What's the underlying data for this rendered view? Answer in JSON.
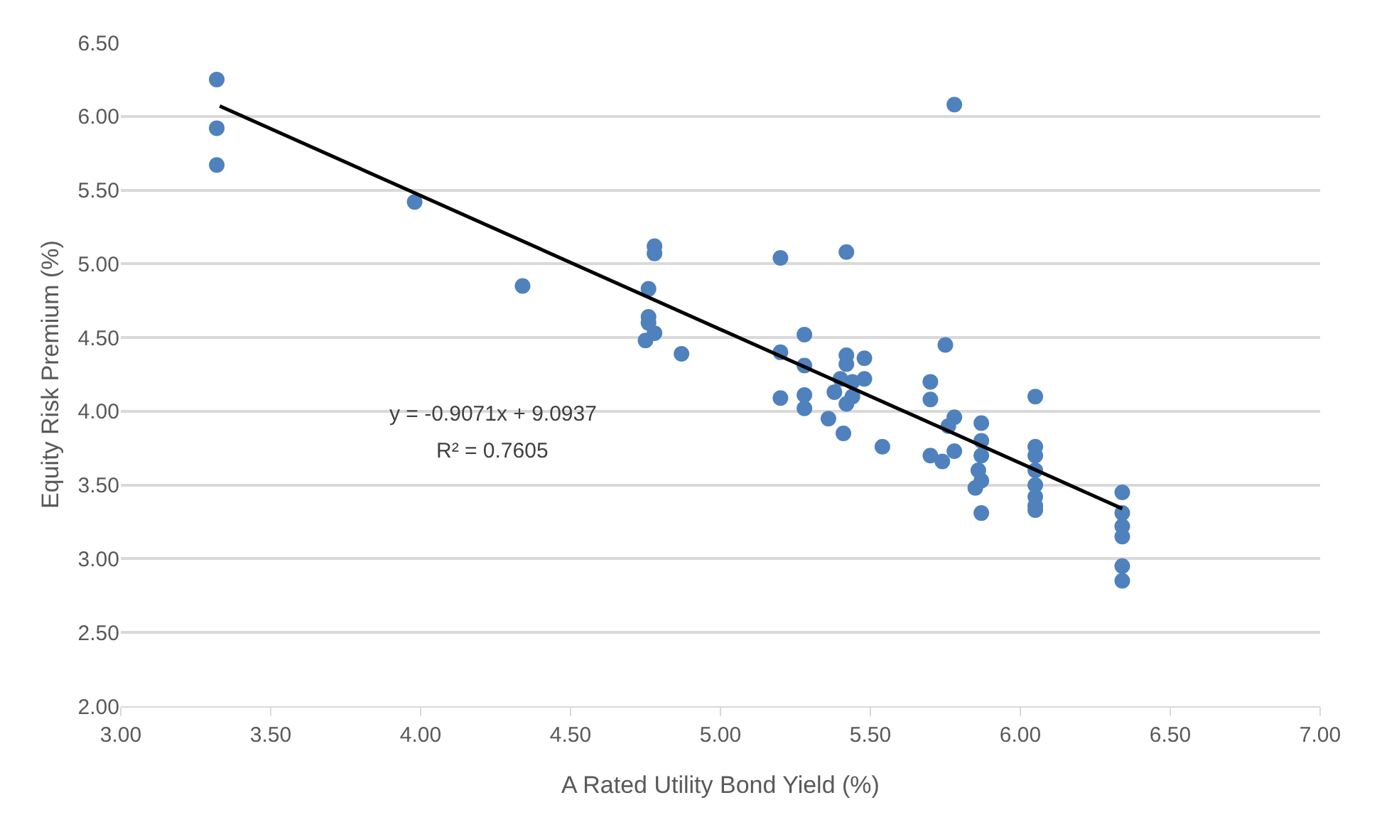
{
  "chart_data": {
    "type": "scatter",
    "xlabel": "A Rated Utility Bond Yield (%)",
    "ylabel": "Equity Risk Premium (%)",
    "annotations": [
      "y = -0.9071x + 9.0937",
      "R² = 0.7605"
    ],
    "xlim": [
      3,
      7
    ],
    "xticks": [
      {
        "value": 3,
        "label": "3.00"
      },
      {
        "value": 3.5,
        "label": "3.50"
      },
      {
        "value": 4,
        "label": "4.00"
      },
      {
        "value": 4.5,
        "label": "4.50"
      },
      {
        "value": 5,
        "label": "5.00"
      },
      {
        "value": 5.5,
        "label": "5.50"
      },
      {
        "value": 6,
        "label": "6.00"
      },
      {
        "value": 6.5,
        "label": "6.50"
      },
      {
        "value": 7,
        "label": "7.00"
      }
    ],
    "ylim": [
      2,
      6.5
    ],
    "yticks": [
      {
        "value": 2,
        "label": "2.00"
      },
      {
        "value": 2.5,
        "label": "2.50"
      },
      {
        "value": 3,
        "label": "3.00"
      },
      {
        "value": 3.5,
        "label": "3.50"
      },
      {
        "value": 4,
        "label": "4.00"
      },
      {
        "value": 4.5,
        "label": "4.50"
      },
      {
        "value": 5,
        "label": "5.00"
      },
      {
        "value": 5.5,
        "label": "5.50"
      },
      {
        "value": 6,
        "label": "6.00"
      },
      {
        "value": 6.5,
        "label": "6.50"
      }
    ],
    "grid": "y",
    "marker": "circle",
    "series": [
      {
        "color": "#4f81bd",
        "x": [
          3.32,
          3.32,
          3.32,
          3.98,
          4.34,
          4.78,
          4.78,
          4.76,
          4.76,
          4.76,
          4.78,
          4.75,
          4.87,
          5.2,
          5.2,
          5.2,
          5.28,
          5.28,
          5.28,
          5.28,
          5.36,
          5.38,
          5.4,
          5.41,
          5.42,
          5.42,
          5.42,
          5.42,
          5.44,
          5.44,
          5.48,
          5.48,
          5.54,
          5.7,
          5.7,
          5.7,
          5.75,
          5.74,
          5.78,
          5.78,
          5.78,
          5.76,
          5.87,
          5.87,
          5.87,
          5.86,
          5.85,
          5.87,
          5.87,
          6.05,
          6.05,
          6.05,
          6.05,
          6.05,
          6.05,
          6.05,
          6.05,
          6.34,
          6.34,
          6.34,
          6.34,
          6.34,
          6.34
        ],
        "values": [
          6.25,
          5.92,
          5.67,
          5.42,
          4.85,
          5.12,
          5.07,
          4.83,
          4.64,
          4.6,
          4.53,
          4.48,
          4.39,
          5.04,
          4.4,
          4.09,
          4.52,
          4.31,
          4.11,
          4.02,
          3.95,
          4.13,
          4.22,
          3.85,
          5.08,
          4.38,
          4.32,
          4.05,
          4.1,
          4.2,
          4.36,
          4.22,
          3.76,
          4.2,
          4.08,
          3.7,
          4.45,
          3.66,
          6.08,
          3.96,
          3.73,
          3.9,
          3.92,
          3.8,
          3.7,
          3.6,
          3.48,
          3.53,
          3.31,
          4.1,
          3.76,
          3.7,
          3.6,
          3.5,
          3.42,
          3.36,
          3.33,
          3.45,
          3.31,
          3.22,
          3.15,
          2.95,
          2.85
        ]
      },
      {
        "type": "line",
        "color": "#000000",
        "marker": "none",
        "x": [
          3.33,
          6.34
        ],
        "values": [
          6.07,
          3.34
        ]
      }
    ]
  }
}
